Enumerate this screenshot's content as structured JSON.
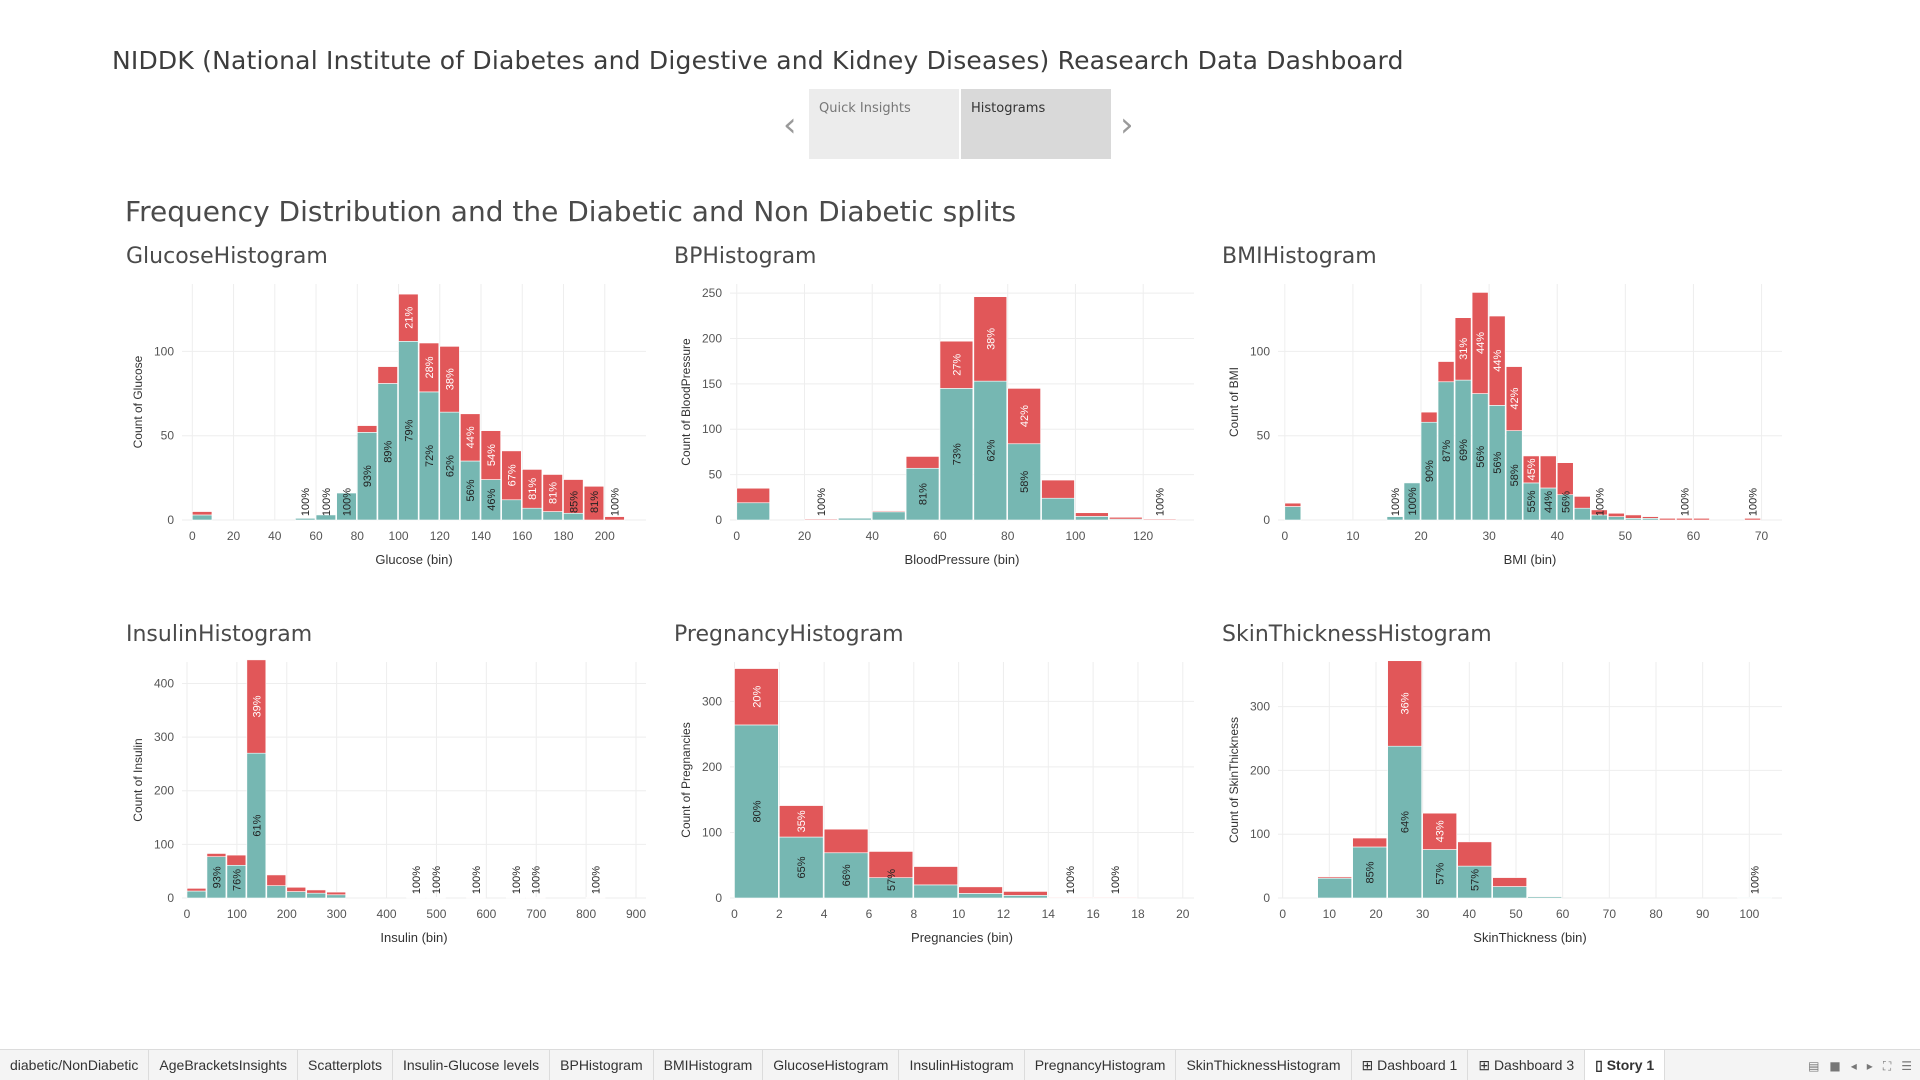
{
  "header": {
    "title": "NIDDK (National Institute of Diabetes and Digestive and Kidney Diseases) Reasearch Data Dashboard"
  },
  "story_nav": {
    "prev_icon": "chevron-left-icon",
    "next_icon": "chevron-right-icon",
    "points": [
      {
        "label": "Quick Insights",
        "active": false
      },
      {
        "label": "Histograms",
        "active": true
      }
    ]
  },
  "section_title": "Frequency Distribution and the Diabetic and Non Diabetic splits",
  "colors": {
    "non_diabetic": "#76b7b2",
    "diabetic": "#e15759"
  },
  "chart_data": [
    {
      "type": "bar",
      "stacked": true,
      "title": "GlucoseHistogram",
      "xlabel": "Glucose (bin)",
      "ylabel": "Count of Glucose",
      "bin_size": 10,
      "xlim": [
        -5,
        220
      ],
      "ylim": [
        0,
        140
      ],
      "xticks": [
        0,
        20,
        40,
        60,
        80,
        100,
        120,
        140,
        160,
        180,
        200
      ],
      "yticks": [
        0,
        50,
        100
      ],
      "bins": [
        0,
        50,
        60,
        70,
        80,
        90,
        100,
        110,
        120,
        130,
        140,
        150,
        160,
        170,
        180,
        190,
        200
      ],
      "series": [
        {
          "name": "Non Diabetic",
          "values": [
            3,
            1,
            3,
            16,
            52,
            81,
            106,
            76,
            64,
            35,
            24,
            12,
            7,
            5,
            4,
            0,
            0
          ]
        },
        {
          "name": "Diabetic",
          "values": [
            2,
            0,
            0,
            0,
            4,
            10,
            28,
            29,
            39,
            28,
            29,
            29,
            23,
            22,
            20,
            20,
            2
          ]
        }
      ],
      "labels": [
        "",
        "100%",
        "100%",
        "100%",
        "93%",
        "89%",
        "79%",
        "72%",
        "62%",
        "56%",
        "46%",
        "67%",
        "81%",
        "81%",
        "85%",
        "81%",
        "100%"
      ],
      "label_series": [
        "",
        "Non Diabetic",
        "Non Diabetic",
        "Non Diabetic",
        "Non Diabetic",
        "Non Diabetic",
        "Non Diabetic",
        "Non Diabetic",
        "Non Diabetic",
        "Non Diabetic",
        "Non Diabetic",
        "Diabetic",
        "Diabetic",
        "Diabetic",
        "Diabetic",
        "Diabetic",
        "Non Diabetic"
      ],
      "top_labels": [
        "",
        "",
        "",
        "",
        "",
        "",
        "21%",
        "28%",
        "38%",
        "44%",
        "54%",
        "",
        "",
        "",
        "",
        "",
        ""
      ]
    },
    {
      "type": "bar",
      "stacked": true,
      "title": "BPHistogram",
      "xlabel": "BloodPressure (bin)",
      "ylabel": "Count of BloodPressure",
      "bin_size": 10,
      "xlim": [
        -2,
        135
      ],
      "ylim": [
        0,
        260
      ],
      "xticks": [
        0,
        20,
        40,
        60,
        80,
        100,
        120
      ],
      "yticks": [
        0,
        50,
        100,
        150,
        200,
        250
      ],
      "bins": [
        0,
        20,
        30,
        40,
        50,
        60,
        70,
        80,
        90,
        100,
        110,
        120
      ],
      "series": [
        {
          "name": "Non Diabetic",
          "values": [
            19,
            0,
            2,
            9,
            57,
            145,
            153,
            84,
            24,
            4,
            1,
            0
          ]
        },
        {
          "name": "Diabetic",
          "values": [
            16,
            1,
            0,
            1,
            13,
            52,
            93,
            61,
            20,
            4,
            2,
            1
          ]
        }
      ],
      "labels": [
        "",
        "100%",
        "",
        "",
        "81%",
        "73%",
        "62%",
        "58%",
        "",
        "",
        "",
        "100%"
      ],
      "label_series": [
        "",
        "Diabetic",
        "",
        "",
        "Non Diabetic",
        "Non Diabetic",
        "Non Diabetic",
        "Non Diabetic",
        "",
        "",
        "",
        "Diabetic"
      ],
      "top_labels": [
        "",
        "",
        "",
        "",
        "",
        "27%",
        "38%",
        "42%",
        "",
        "",
        "",
        ""
      ]
    },
    {
      "type": "bar",
      "stacked": true,
      "title": "BMIHistogram",
      "xlabel": "BMI (bin)",
      "ylabel": "Count of BMI",
      "bin_size": 2.5,
      "xlim": [
        -1,
        73
      ],
      "ylim": [
        0,
        140
      ],
      "xticks": [
        0,
        10,
        20,
        30,
        40,
        50,
        60,
        70
      ],
      "yticks": [
        0,
        50,
        100
      ],
      "bins": [
        0,
        15,
        17.5,
        20,
        22.5,
        25,
        27.5,
        30,
        32.5,
        35,
        37.5,
        40,
        42.5,
        45,
        47.5,
        50,
        52.5,
        55,
        57.5,
        60,
        67.5
      ],
      "series": [
        {
          "name": "Non Diabetic",
          "values": [
            8,
            2,
            22,
            58,
            82,
            83,
            75,
            68,
            53,
            22,
            19,
            15,
            7,
            3,
            2,
            1,
            1,
            0,
            0,
            0,
            0
          ]
        },
        {
          "name": "Diabetic",
          "values": [
            2,
            0,
            0,
            6,
            12,
            37,
            60,
            53,
            38,
            16,
            19,
            19,
            7,
            3,
            2,
            2,
            1,
            1,
            1,
            1,
            1
          ]
        }
      ],
      "labels": [
        "",
        "100%",
        "100%",
        "90%",
        "87%",
        "69%",
        "56%",
        "56%",
        "58%",
        "55%",
        "44%",
        "56%",
        "",
        "100%",
        "",
        "",
        "",
        "",
        "100%",
        "",
        "100%"
      ],
      "label_series": [
        "",
        "Non Diabetic",
        "Non Diabetic",
        "Non Diabetic",
        "Non Diabetic",
        "Non Diabetic",
        "Non Diabetic",
        "Non Diabetic",
        "Non Diabetic",
        "Non Diabetic",
        "Non Diabetic",
        "Diabetic",
        "",
        "Non Diabetic",
        "",
        "",
        "",
        "",
        "Diabetic",
        "",
        "Diabetic"
      ],
      "top_labels": [
        "",
        "",
        "",
        "",
        "",
        "31%",
        "44%",
        "44%",
        "42%",
        "45%",
        "",
        "",
        "",
        "",
        "",
        "",
        "",
        "",
        "",
        "",
        ""
      ]
    },
    {
      "type": "bar",
      "stacked": true,
      "title": "InsulinHistogram",
      "xlabel": "Insulin (bin)",
      "ylabel": "Count of Insulin",
      "bin_size": 40,
      "xlim": [
        -10,
        920
      ],
      "ylim": [
        0,
        440
      ],
      "xticks": [
        0,
        100,
        200,
        300,
        400,
        500,
        600,
        700,
        800,
        900
      ],
      "yticks": [
        0,
        100,
        200,
        300,
        400
      ],
      "bins": [
        0,
        40,
        80,
        120,
        160,
        200,
        240,
        280,
        440,
        480,
        560,
        640,
        680,
        800
      ],
      "series": [
        {
          "name": "Non Diabetic",
          "values": [
            13,
            77,
            61,
            270,
            23,
            12,
            9,
            6,
            1,
            1,
            0,
            1,
            0,
            0
          ]
        },
        {
          "name": "Diabetic",
          "values": [
            5,
            6,
            19,
            174,
            20,
            8,
            6,
            5,
            0,
            0,
            1,
            0,
            1,
            1
          ]
        }
      ],
      "labels": [
        "",
        "93%",
        "76%",
        "61%",
        "",
        "",
        "",
        "",
        "100%",
        "100%",
        "100%",
        "100%",
        "100%",
        "100%"
      ],
      "label_series": [
        "",
        "Non Diabetic",
        "Non Diabetic",
        "Non Diabetic",
        "",
        "",
        "",
        "",
        "Non Diabetic",
        "Non Diabetic",
        "Diabetic",
        "Non Diabetic",
        "Diabetic",
        "Diabetic"
      ],
      "top_labels": [
        "",
        "",
        "",
        "39%",
        "",
        "",
        "",
        "",
        "",
        "",
        "",
        "",
        "",
        ""
      ]
    },
    {
      "type": "bar",
      "stacked": true,
      "title": "PregnancyHistogram",
      "xlabel": "Pregnancies (bin)",
      "ylabel": "Count of Pregnancies",
      "bin_size": 2,
      "xlim": [
        -0.2,
        20.5
      ],
      "ylim": [
        0,
        360
      ],
      "xticks": [
        0,
        2,
        4,
        6,
        8,
        10,
        12,
        14,
        16,
        18,
        20
      ],
      "yticks": [
        0,
        100,
        200,
        300
      ],
      "bins": [
        0,
        2,
        4,
        6,
        8,
        10,
        12,
        14,
        16
      ],
      "series": [
        {
          "name": "Non Diabetic",
          "values": [
            264,
            93,
            69,
            31,
            20,
            7,
            4,
            0,
            0
          ]
        },
        {
          "name": "Diabetic",
          "values": [
            86,
            48,
            36,
            40,
            28,
            10,
            6,
            1,
            1
          ]
        }
      ],
      "labels": [
        "80%",
        "65%",
        "66%",
        "57%",
        "",
        "",
        "",
        "100%",
        "100%"
      ],
      "label_series": [
        "Non Diabetic",
        "Non Diabetic",
        "Non Diabetic",
        "Diabetic",
        "",
        "",
        "",
        "Diabetic",
        "Diabetic"
      ],
      "top_labels": [
        "20%",
        "35%",
        "",
        "",
        "",
        "",
        "",
        "",
        ""
      ]
    },
    {
      "type": "bar",
      "stacked": true,
      "title": "SkinThicknessHistogram",
      "xlabel": "SkinThickness (bin)",
      "ylabel": "Count of SkinThickness",
      "bin_size": 7.5,
      "xlim": [
        -1,
        107
      ],
      "ylim": [
        0,
        370
      ],
      "xticks": [
        0,
        10,
        20,
        30,
        40,
        50,
        60,
        70,
        80,
        90,
        100
      ],
      "yticks": [
        0,
        100,
        200,
        300
      ],
      "bins": [
        7.5,
        15,
        22.5,
        30,
        37.5,
        45,
        52.5,
        97.5
      ],
      "series": [
        {
          "name": "Non Diabetic",
          "values": [
            31,
            80,
            238,
            76,
            50,
            18,
            2,
            1
          ]
        },
        {
          "name": "Diabetic",
          "values": [
            2,
            14,
            134,
            57,
            38,
            14,
            1,
            0
          ]
        }
      ],
      "labels": [
        "",
        "85%",
        "64%",
        "57%",
        "57%",
        "",
        "",
        "100%"
      ],
      "label_series": [
        "",
        "Non Diabetic",
        "Non Diabetic",
        "Non Diabetic",
        "Non Diabetic",
        "",
        "",
        "Non Diabetic"
      ],
      "top_labels": [
        "",
        "",
        "36%",
        "43%",
        "",
        "",
        "",
        ""
      ]
    }
  ],
  "sheet_tabs": [
    {
      "label": "diabetic/NonDiabetic",
      "icon": "",
      "active": false
    },
    {
      "label": "AgeBracketsInsights",
      "icon": "",
      "active": false
    },
    {
      "label": "Scatterplots",
      "icon": "",
      "active": false
    },
    {
      "label": "Insulin-Glucose levels",
      "icon": "",
      "active": false
    },
    {
      "label": "BPHistogram",
      "icon": "",
      "active": false
    },
    {
      "label": "BMIHistogram",
      "icon": "",
      "active": false
    },
    {
      "label": "GlucoseHistogram",
      "icon": "",
      "active": false
    },
    {
      "label": "InsulinHistogram",
      "icon": "",
      "active": false
    },
    {
      "label": "PregnancyHistogram",
      "icon": "",
      "active": false
    },
    {
      "label": "SkinThicknessHistogram",
      "icon": "",
      "active": false
    },
    {
      "label": "Dashboard 1",
      "icon": "grid-icon",
      "active": false
    },
    {
      "label": "Dashboard 3",
      "icon": "grid-icon",
      "active": false
    },
    {
      "label": "Story 1",
      "icon": "book-icon",
      "active": true
    }
  ],
  "bottom_controls": [
    "sheet-list-icon",
    "filmstrip-icon",
    "prev-sheet-icon",
    "next-sheet-icon",
    "fullscreen-icon",
    "menu-icon"
  ]
}
